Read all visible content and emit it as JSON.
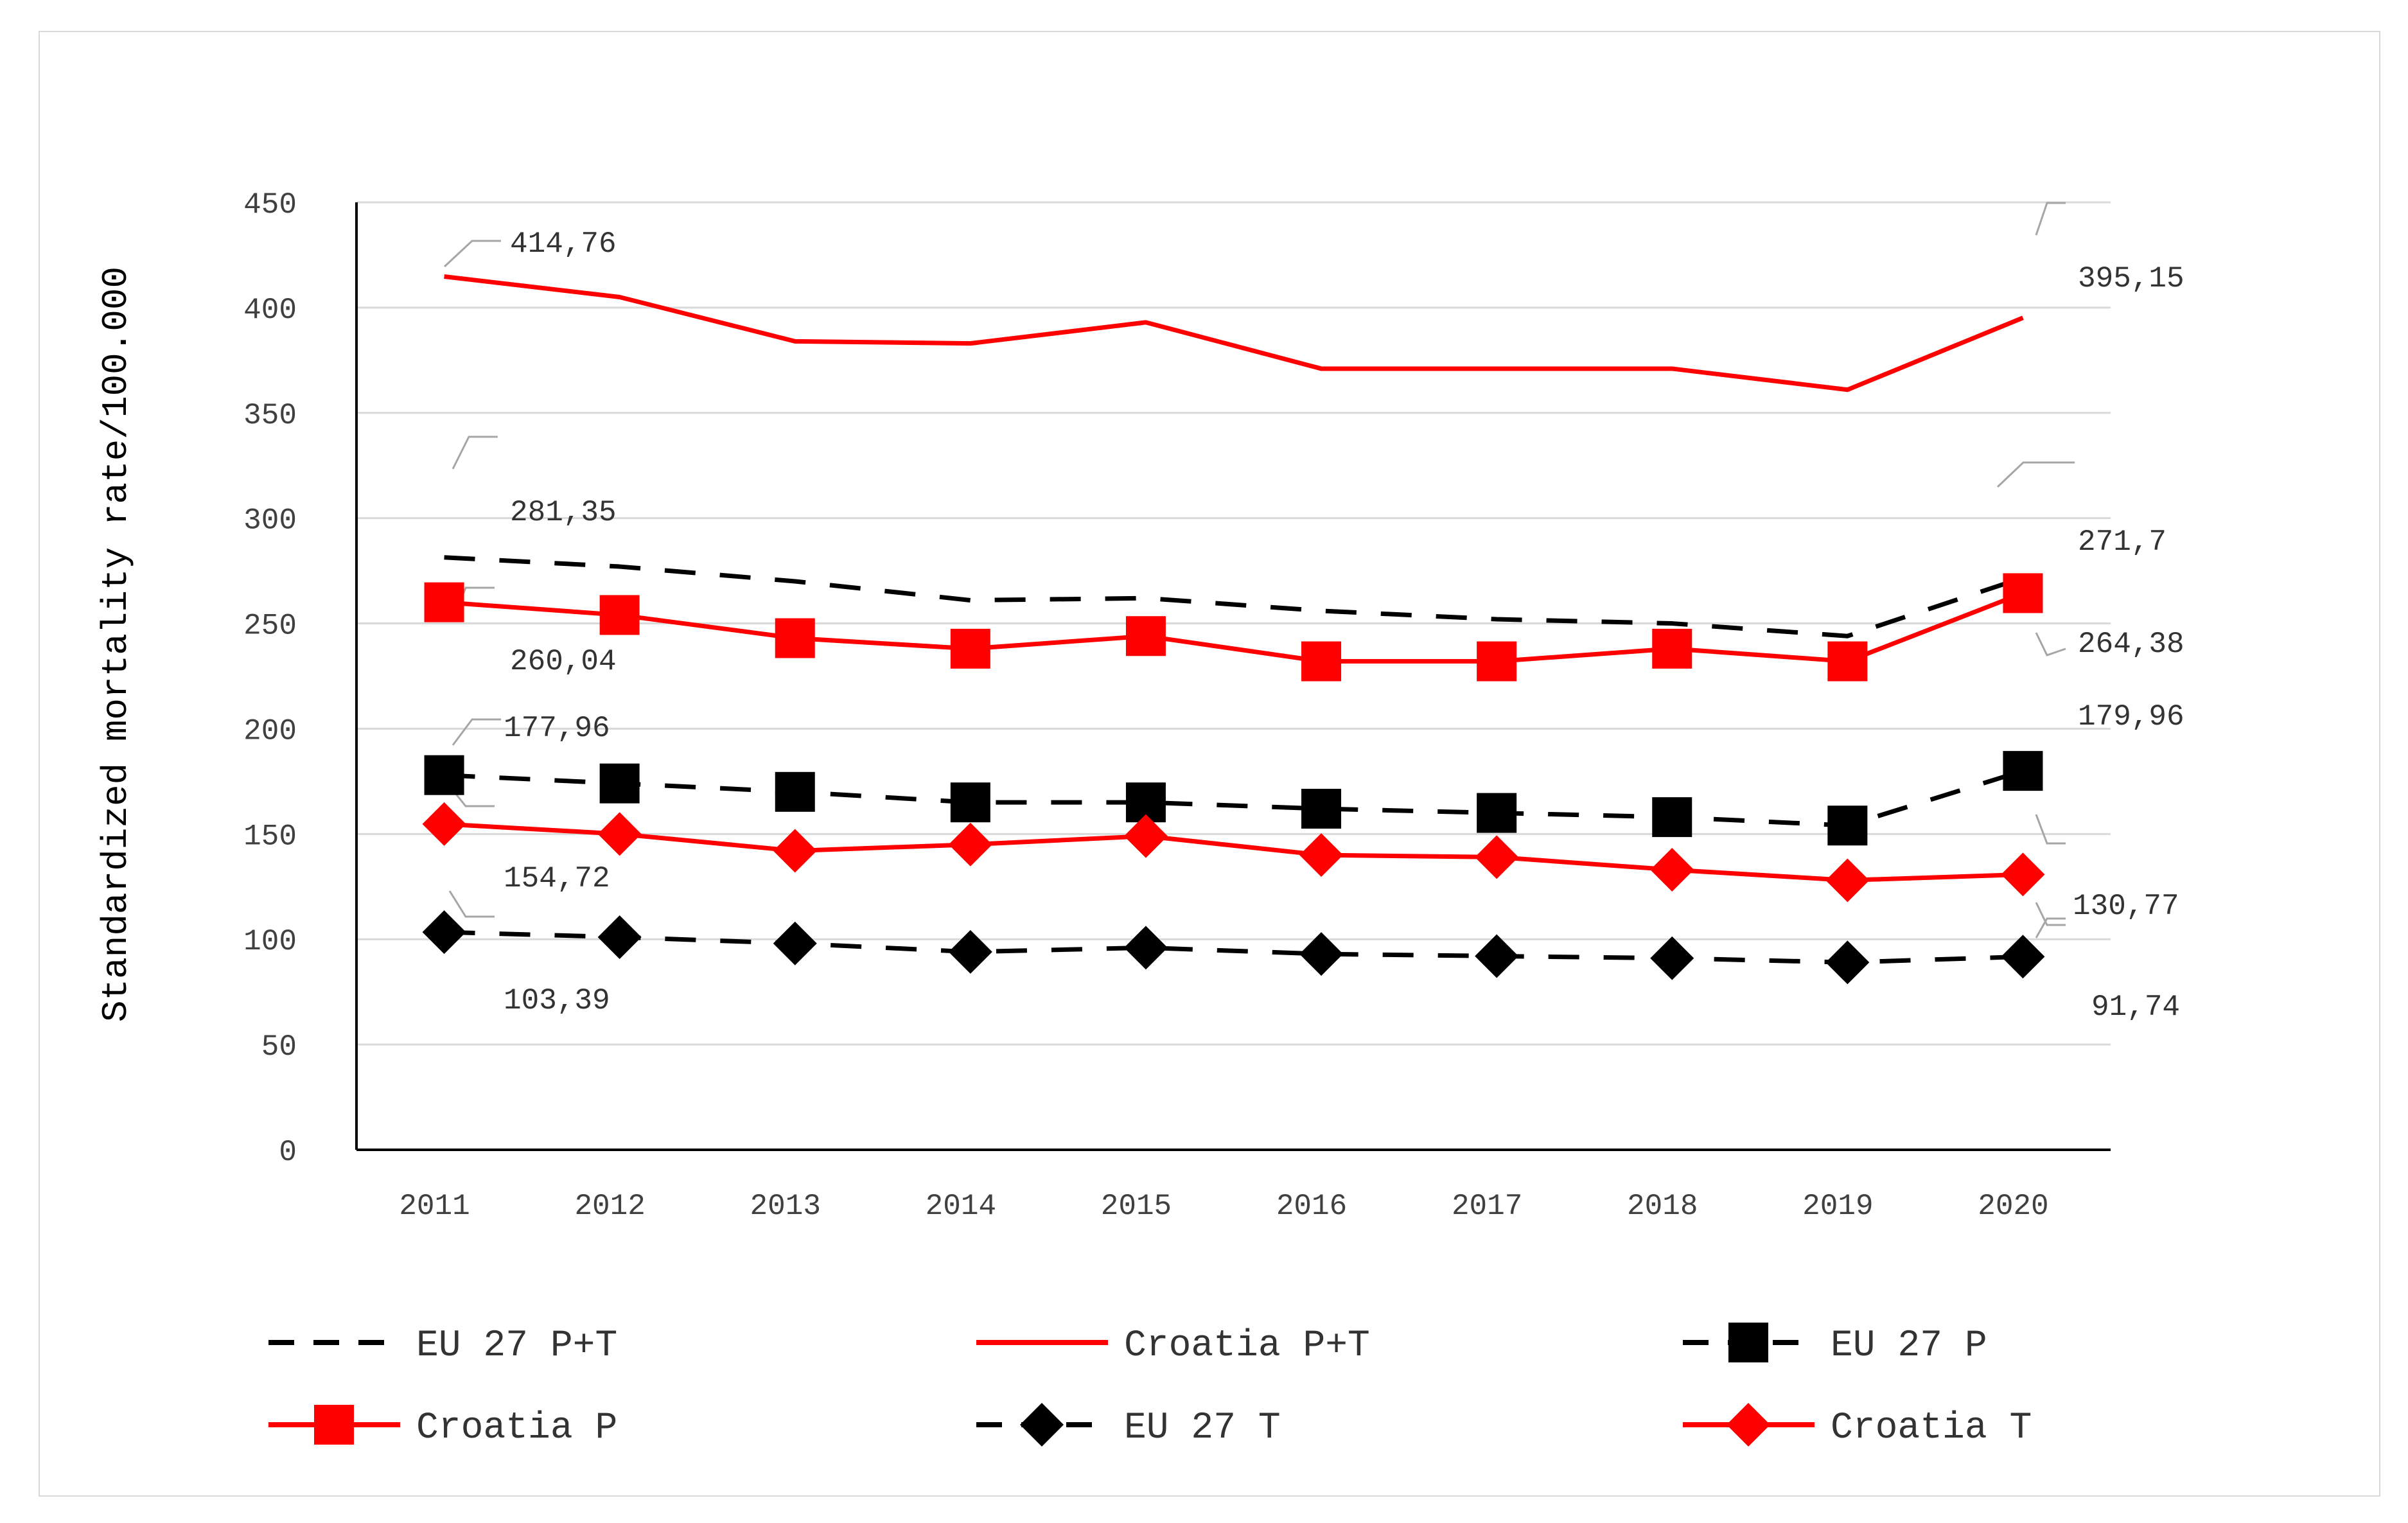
{
  "chart_data": {
    "type": "line",
    "title": "",
    "xlabel": "",
    "ylabel": "Standardized mortality rate/100.000",
    "ylim": [
      0,
      450
    ],
    "yticks": [
      0,
      50,
      100,
      150,
      200,
      250,
      300,
      350,
      400,
      450
    ],
    "ytick_labels": [
      "0",
      "50",
      "100",
      "150",
      "200",
      "250",
      "300",
      "350",
      "400",
      "450"
    ],
    "categories": [
      "2011",
      "2012",
      "2013",
      "2014",
      "2015",
      "2016",
      "2017",
      "2018",
      "2019",
      "2020"
    ],
    "grid": "horizontal",
    "legend_position": "bottom",
    "series": [
      {
        "name": "EU 27 P+T",
        "color": "#000000",
        "dash": "dashed",
        "marker": "none",
        "values": [
          281.35,
          277,
          270,
          261,
          262,
          256,
          252,
          250,
          244,
          271.7
        ]
      },
      {
        "name": "Croatia P+T",
        "color": "#ff0000",
        "dash": "solid",
        "marker": "none",
        "values": [
          414.76,
          405,
          384,
          383,
          393,
          371,
          371,
          371,
          361,
          395.15
        ]
      },
      {
        "name": "EU 27 P",
        "color": "#000000",
        "dash": "dashed",
        "marker": "square",
        "values": [
          177.96,
          174,
          170,
          165,
          165,
          162,
          160,
          158,
          154,
          179.96
        ]
      },
      {
        "name": "Croatia P",
        "color": "#ff0000",
        "dash": "solid",
        "marker": "square",
        "values": [
          260.04,
          254,
          243,
          238,
          244,
          232,
          232,
          238,
          232,
          264.38
        ]
      },
      {
        "name": "EU 27 T",
        "color": "#000000",
        "dash": "dashed",
        "marker": "diamond",
        "values": [
          103.39,
          101,
          98,
          94,
          96,
          93,
          92,
          91,
          89,
          91.74
        ]
      },
      {
        "name": "Croatia T",
        "color": "#ff0000",
        "dash": "solid",
        "marker": "diamond",
        "values": [
          154.72,
          150,
          142,
          145,
          149,
          140,
          139,
          133,
          128,
          130.77
        ]
      }
    ],
    "data_labels": [
      "414,76",
      "395,15",
      "281,35",
      "271,7",
      "260,04",
      "264,38",
      "177,96",
      "179,96",
      "154,72",
      "130,77",
      "103,39",
      "91,74"
    ]
  }
}
